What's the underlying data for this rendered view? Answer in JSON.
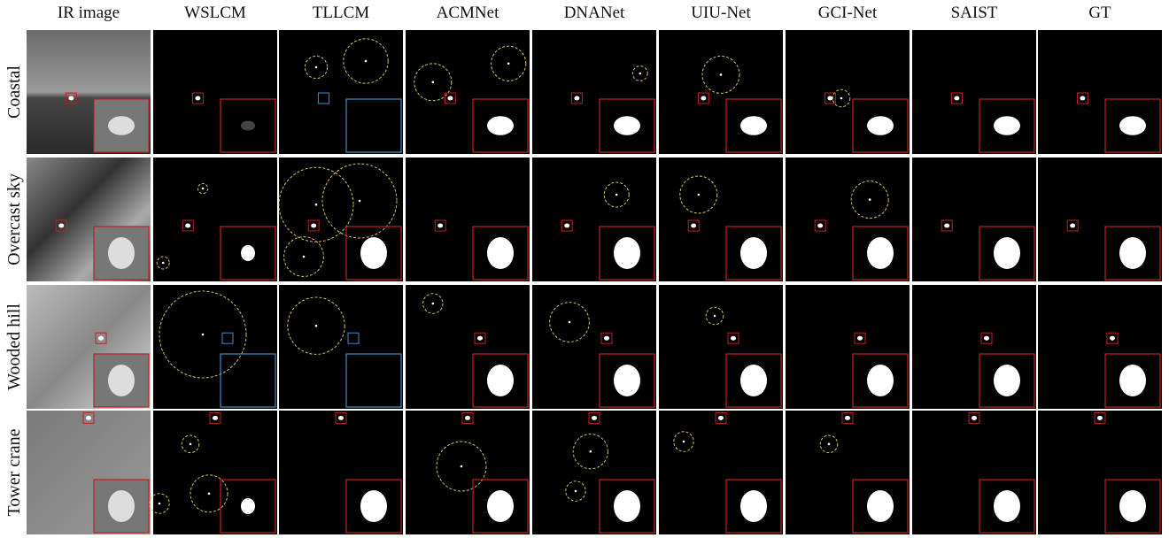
{
  "columns": [
    "IR image",
    "WSLCM",
    "TLLCM",
    "ACMNet",
    "DNANet",
    "UIU-Net",
    "GCI-Net",
    "SAIST",
    "GT"
  ],
  "rows": [
    "Coastal",
    "Overcast sky",
    "Wooded hill",
    "Tower crane"
  ]
}
